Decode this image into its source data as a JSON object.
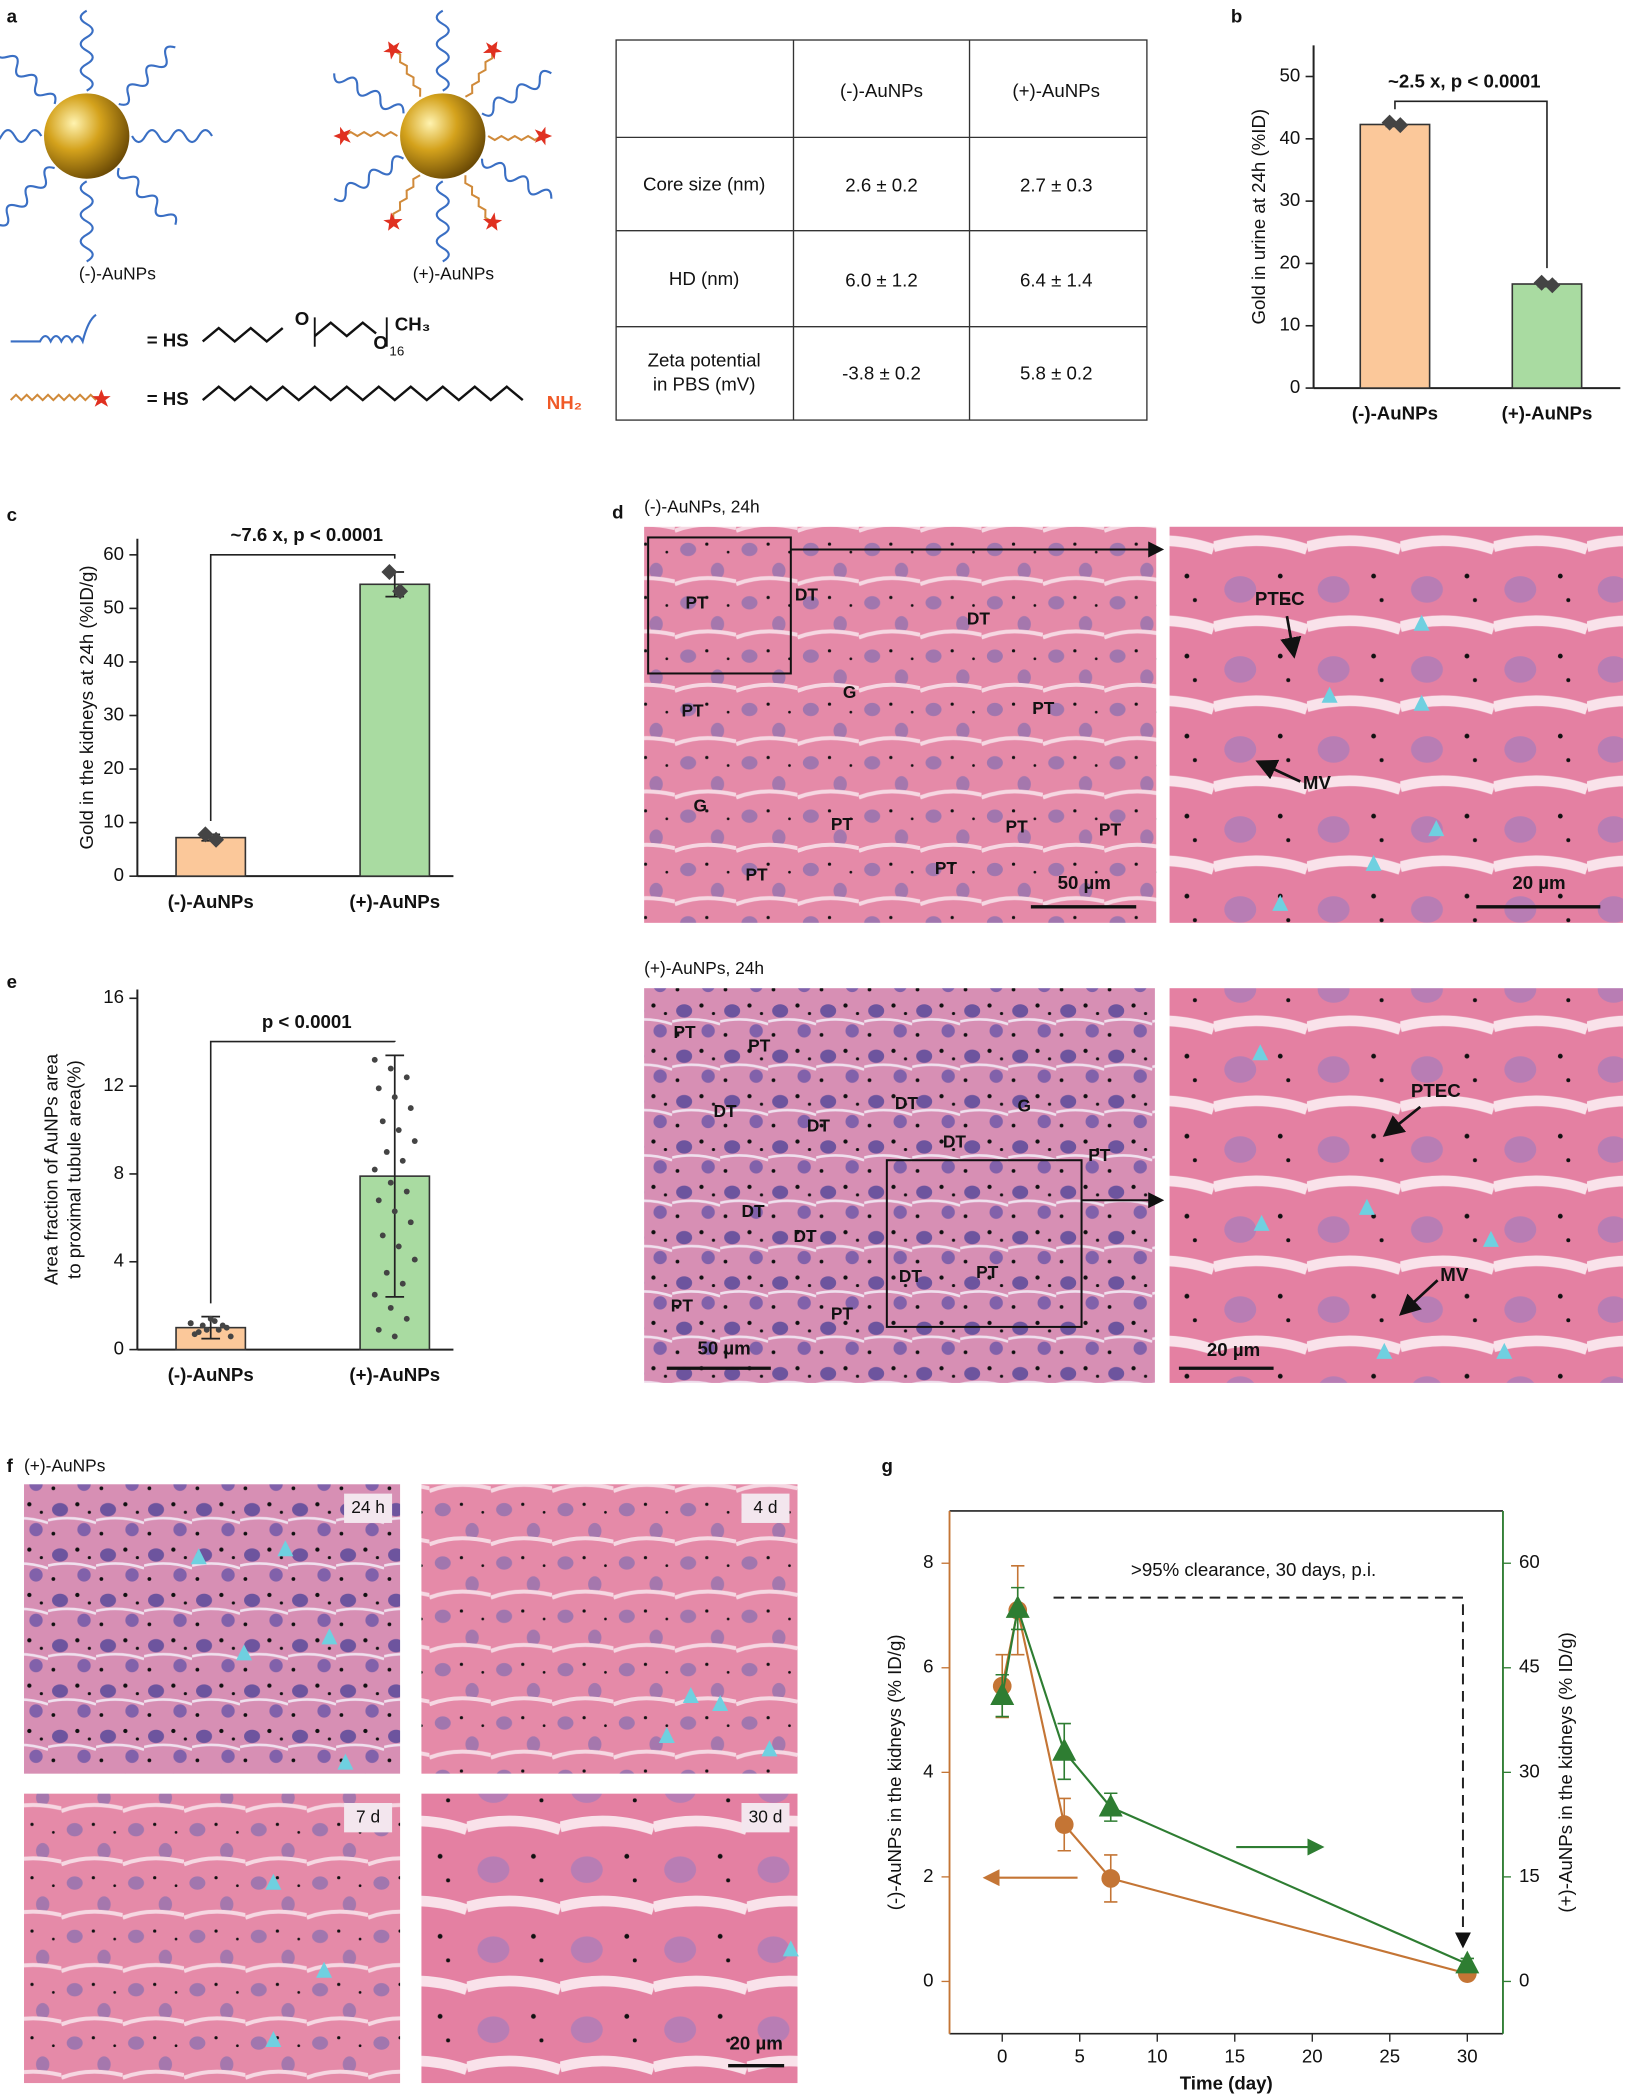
{
  "panel_labels": [
    "a",
    "b",
    "c",
    "d",
    "e",
    "f",
    "g"
  ],
  "panel_a": {
    "particle_labels": [
      "(-)-AuNPs",
      "(+)-AuNPs"
    ],
    "ligand_peg": {
      "head": "= HS",
      "oxygens": [
        "O",
        "O"
      ],
      "repeat": "16",
      "tail": "CH₃"
    },
    "ligand_amine": {
      "head": "= HS",
      "tail": "NH₂"
    },
    "table": {
      "header": [
        "(-)-AuNPs",
        "(+)-AuNPs"
      ],
      "rows": [
        {
          "label": [
            "Core size (nm)"
          ],
          "values": [
            "2.6 ± 0.2",
            "2.7 ± 0.3"
          ]
        },
        {
          "label": [
            "HD (nm)"
          ],
          "values": [
            "6.0 ± 1.2",
            "6.4 ± 1.4"
          ]
        },
        {
          "label": [
            "Zeta potential",
            "in PBS (mV)"
          ],
          "values": [
            "-3.8 ± 0.2",
            "5.8 ± 0.2"
          ]
        }
      ]
    }
  },
  "panel_d": {
    "top": {
      "title": "(-)-AuNPs, 24h",
      "overview_labels": [
        "PT",
        "DT",
        "DT",
        "G",
        "PT",
        "PT",
        "G",
        "PT",
        "PT",
        "PT",
        "PT",
        "PT"
      ],
      "overview_scale": "50 µm",
      "zoom_labels": [
        "PTEC",
        "MV"
      ],
      "zoom_scale": "20 µm"
    },
    "bottom": {
      "title": "(+)-AuNPs, 24h",
      "overview_labels": [
        "PT",
        "PT",
        "G",
        "DT",
        "DT",
        "DT",
        "DT",
        "PT",
        "DT",
        "DT",
        "DT",
        "PT",
        "PT",
        "PT"
      ],
      "overview_scale": "50 µm",
      "zoom_labels": [
        "PTEC",
        "MV"
      ],
      "zoom_scale": "20 µm"
    }
  },
  "panel_f": {
    "title": "(+)-AuNPs",
    "timepoints": [
      "24 h",
      "4 d",
      "7 d",
      "30 d"
    ],
    "scale": "20 µm"
  },
  "chart_data": [
    {
      "type": "bar",
      "ylabel": "Gold in urine at 24h (%ID)",
      "annotation": "~2.5 x, p < 0.0001",
      "categories": [
        "(-)-AuNPs",
        "(+)-AuNPs"
      ],
      "values": [
        42.3,
        16.7
      ],
      "errors": [
        0.3,
        0.4
      ],
      "points": [
        [
          42.6,
          42.2
        ],
        [
          16.9,
          16.5
        ]
      ],
      "marker": "diamond",
      "colors": [
        "#fbc89a",
        "#a9dba1"
      ],
      "ylim": [
        0,
        55
      ],
      "yticks": [
        0,
        10,
        20,
        30,
        40,
        50
      ]
    },
    {
      "type": "bar",
      "ylabel": "Gold in the kidneys at 24h  (%ID/g)",
      "annotation": "~7.6 x, p < 0.0001",
      "categories": [
        "(-)-AuNPs",
        "(+)-AuNPs"
      ],
      "values": [
        7.2,
        54.5
      ],
      "errors": [
        0.6,
        2.3
      ],
      "points": [
        [
          7.8,
          6.8
        ],
        [
          56.8,
          53.2
        ]
      ],
      "marker": "diamond",
      "colors": [
        "#fbc89a",
        "#a9dba1"
      ],
      "ylim": [
        0,
        63
      ],
      "yticks": [
        0,
        10,
        20,
        30,
        40,
        50,
        60
      ]
    },
    {
      "type": "bar",
      "ylabel": [
        "Area fraction of AuNPs area",
        "to proximal tubule area(%)"
      ],
      "annotation": "p < 0.0001",
      "categories": [
        "(-)-AuNPs",
        "(+)-AuNPs"
      ],
      "values": [
        1.0,
        7.9
      ],
      "errors": [
        0.5,
        5.5
      ],
      "points": [
        [
          1.2,
          0.9,
          1.1,
          0.7,
          1.4,
          1.0,
          0.8,
          1.3,
          0.6,
          1.1,
          0.9,
          1.2
        ],
        [
          13.2,
          12.8,
          12.4,
          11.9,
          11.5,
          11.0,
          10.4,
          10.0,
          9.5,
          9.0,
          8.6,
          8.2,
          7.6,
          7.2,
          6.8,
          6.3,
          5.8,
          5.2,
          4.7,
          4.1,
          3.5,
          3.0,
          2.5,
          1.9,
          1.4,
          0.9,
          0.6
        ]
      ],
      "marker": "dot",
      "colors": [
        "#fbc89a",
        "#a9dba1"
      ],
      "ylim": [
        0,
        16.4
      ],
      "yticks": [
        0,
        4,
        8,
        12,
        16
      ]
    },
    {
      "type": "line",
      "xlabel": "Time (day)",
      "ylabel": "(-)-AuNPs in the kidneys (% ID/g)",
      "y2label": "(+)-AuNPs in the kidneys (% ID/g)",
      "annotation": ">95% clearance, 30 days, p.i.",
      "x": [
        0,
        1,
        4,
        7,
        30
      ],
      "series": [
        {
          "color": "#c47535",
          "marker": "circle",
          "values": [
            5.65,
            7.1,
            3.0,
            1.97,
            0.15
          ],
          "errors": [
            0.6,
            0.85,
            0.5,
            0.45,
            0.1
          ]
        },
        {
          "color": "#2e7d32",
          "marker": "triangle",
          "axis": "y2",
          "values": [
            41,
            53.5,
            33,
            25,
            2.5
          ],
          "errors": [
            3,
            3,
            4,
            2,
            0.8
          ]
        }
      ],
      "xlim": [
        -3.4,
        32.3
      ],
      "xticks": [
        0,
        5,
        10,
        15,
        20,
        25,
        30
      ],
      "ylim": [
        -1,
        9
      ],
      "yticks": [
        0,
        2,
        4,
        6,
        8
      ],
      "y2lim": [
        -7.5,
        67.5
      ],
      "y2ticks": [
        0,
        15,
        30,
        45,
        60
      ]
    }
  ]
}
